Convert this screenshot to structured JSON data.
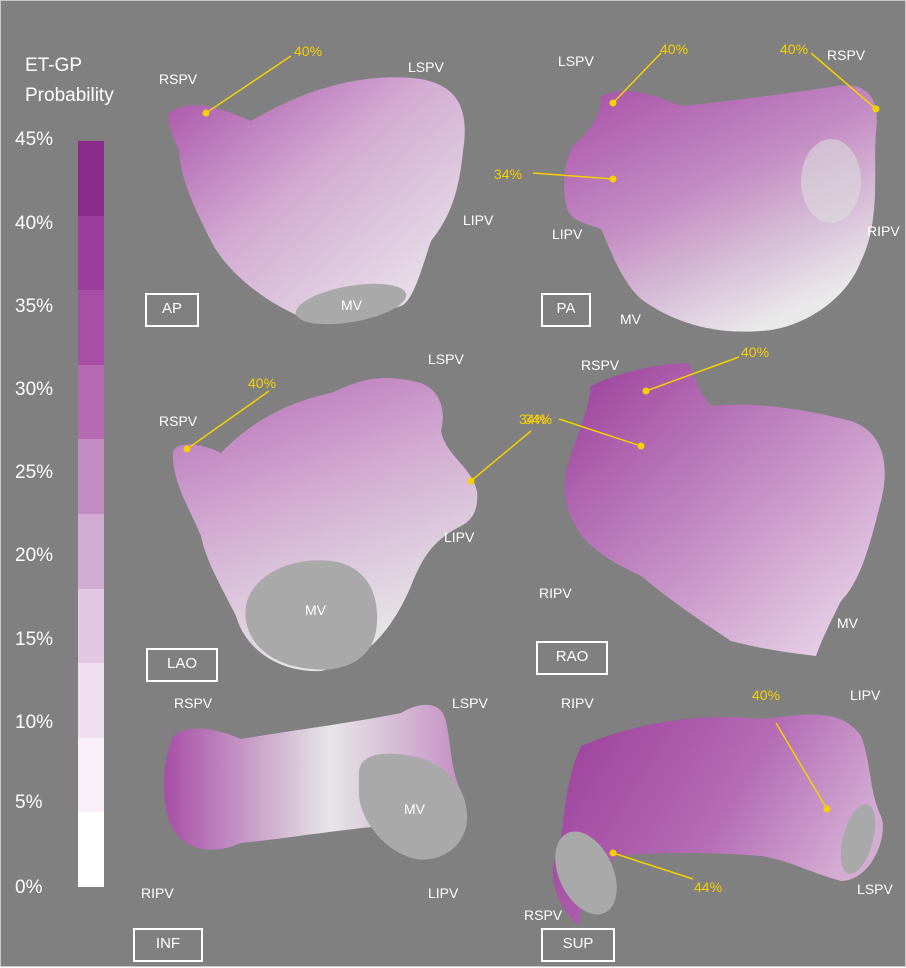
{
  "legend": {
    "title_line1": "ET-GP",
    "title_line2": "Probability",
    "ticks": [
      "45%",
      "40%",
      "35%",
      "30%",
      "25%",
      "20%",
      "15%",
      "10%",
      "5%",
      "0%"
    ],
    "colors": [
      "#8a2a8a",
      "#9b3d9b",
      "#a74ea7",
      "#b46bb4",
      "#c38cc3",
      "#d3acd3",
      "#e2c8e2",
      "#efdfef",
      "#f8eff8",
      "#ffffff"
    ]
  },
  "panels": {
    "ap": {
      "view": "AP",
      "labels": {
        "rspv": "RSPV",
        "lspv": "LSPV",
        "lipv": "LIPV",
        "mv": "MV"
      },
      "callouts": [
        "40%"
      ]
    },
    "pa": {
      "view": "PA",
      "labels": {
        "lspv": "LSPV",
        "rspv": "RSPV",
        "lipv": "LIPV",
        "ripv": "RIPV",
        "mv": "MV"
      },
      "callouts": [
        "40%",
        "40%",
        "34%"
      ]
    },
    "lao": {
      "view": "LAO",
      "labels": {
        "lspv": "LSPV",
        "rspv": "RSPV",
        "lipv": "LIPV",
        "mv": "MV"
      },
      "callouts": [
        "40%",
        "34%"
      ]
    },
    "rao": {
      "view": "RAO",
      "labels": {
        "rspv": "RSPV",
        "ripv": "RIPV",
        "mv": "MV"
      },
      "callouts": [
        "40%",
        "34%"
      ]
    },
    "inf": {
      "view": "INF",
      "labels": {
        "rspv": "RSPV",
        "lspv": "LSPV",
        "ripv": "RIPV",
        "lipv": "LIPV",
        "mv": "MV"
      }
    },
    "sup": {
      "view": "SUP",
      "labels": {
        "ripv": "RIPV",
        "lipv": "LIPV",
        "rspv": "RSPV",
        "lspv": "LSPV"
      },
      "callouts": [
        "40%",
        "44%"
      ]
    }
  }
}
